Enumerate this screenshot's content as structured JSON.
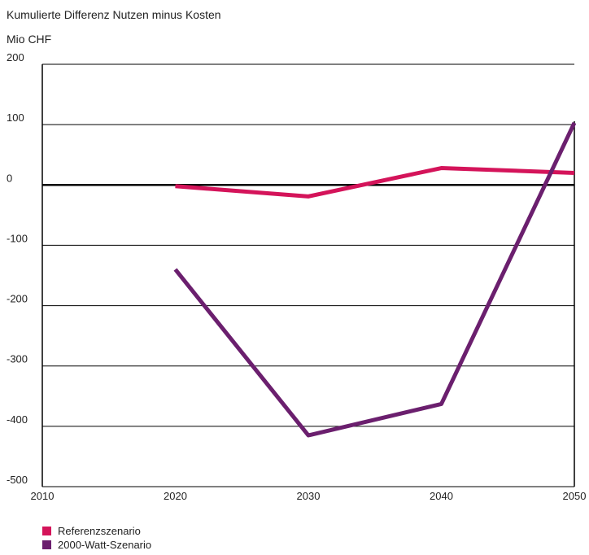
{
  "chart_data": {
    "type": "line",
    "title": "Kumulierte Differenz Nutzen minus Kosten",
    "ylabel": "Mio CHF",
    "xlabel": "",
    "x": [
      2010,
      2020,
      2030,
      2040,
      2050
    ],
    "x_tick_labels": [
      "2010",
      "2020",
      "2030",
      "2040",
      "2050"
    ],
    "y_tick_labels": [
      "200",
      "100",
      "0",
      "-100",
      "-200",
      "-300",
      "-400",
      "-500"
    ],
    "y_ticks": [
      200,
      100,
      0,
      -100,
      -200,
      -300,
      -400,
      -500
    ],
    "xlim": [
      2010,
      2050
    ],
    "ylim": [
      -500,
      200
    ],
    "grid": "horizontal",
    "legend": "bottom-left",
    "series": [
      {
        "name": "Referenzszenario",
        "color": "#d4145a",
        "x": [
          2020,
          2030,
          2040,
          2050
        ],
        "y": [
          -2,
          -19,
          28,
          20
        ]
      },
      {
        "name": "2000-Watt-Szenario",
        "color": "#6b1f6e",
        "x": [
          2020,
          2030,
          2040,
          2050
        ],
        "y": [
          -140,
          -415,
          -363,
          103
        ]
      }
    ]
  }
}
